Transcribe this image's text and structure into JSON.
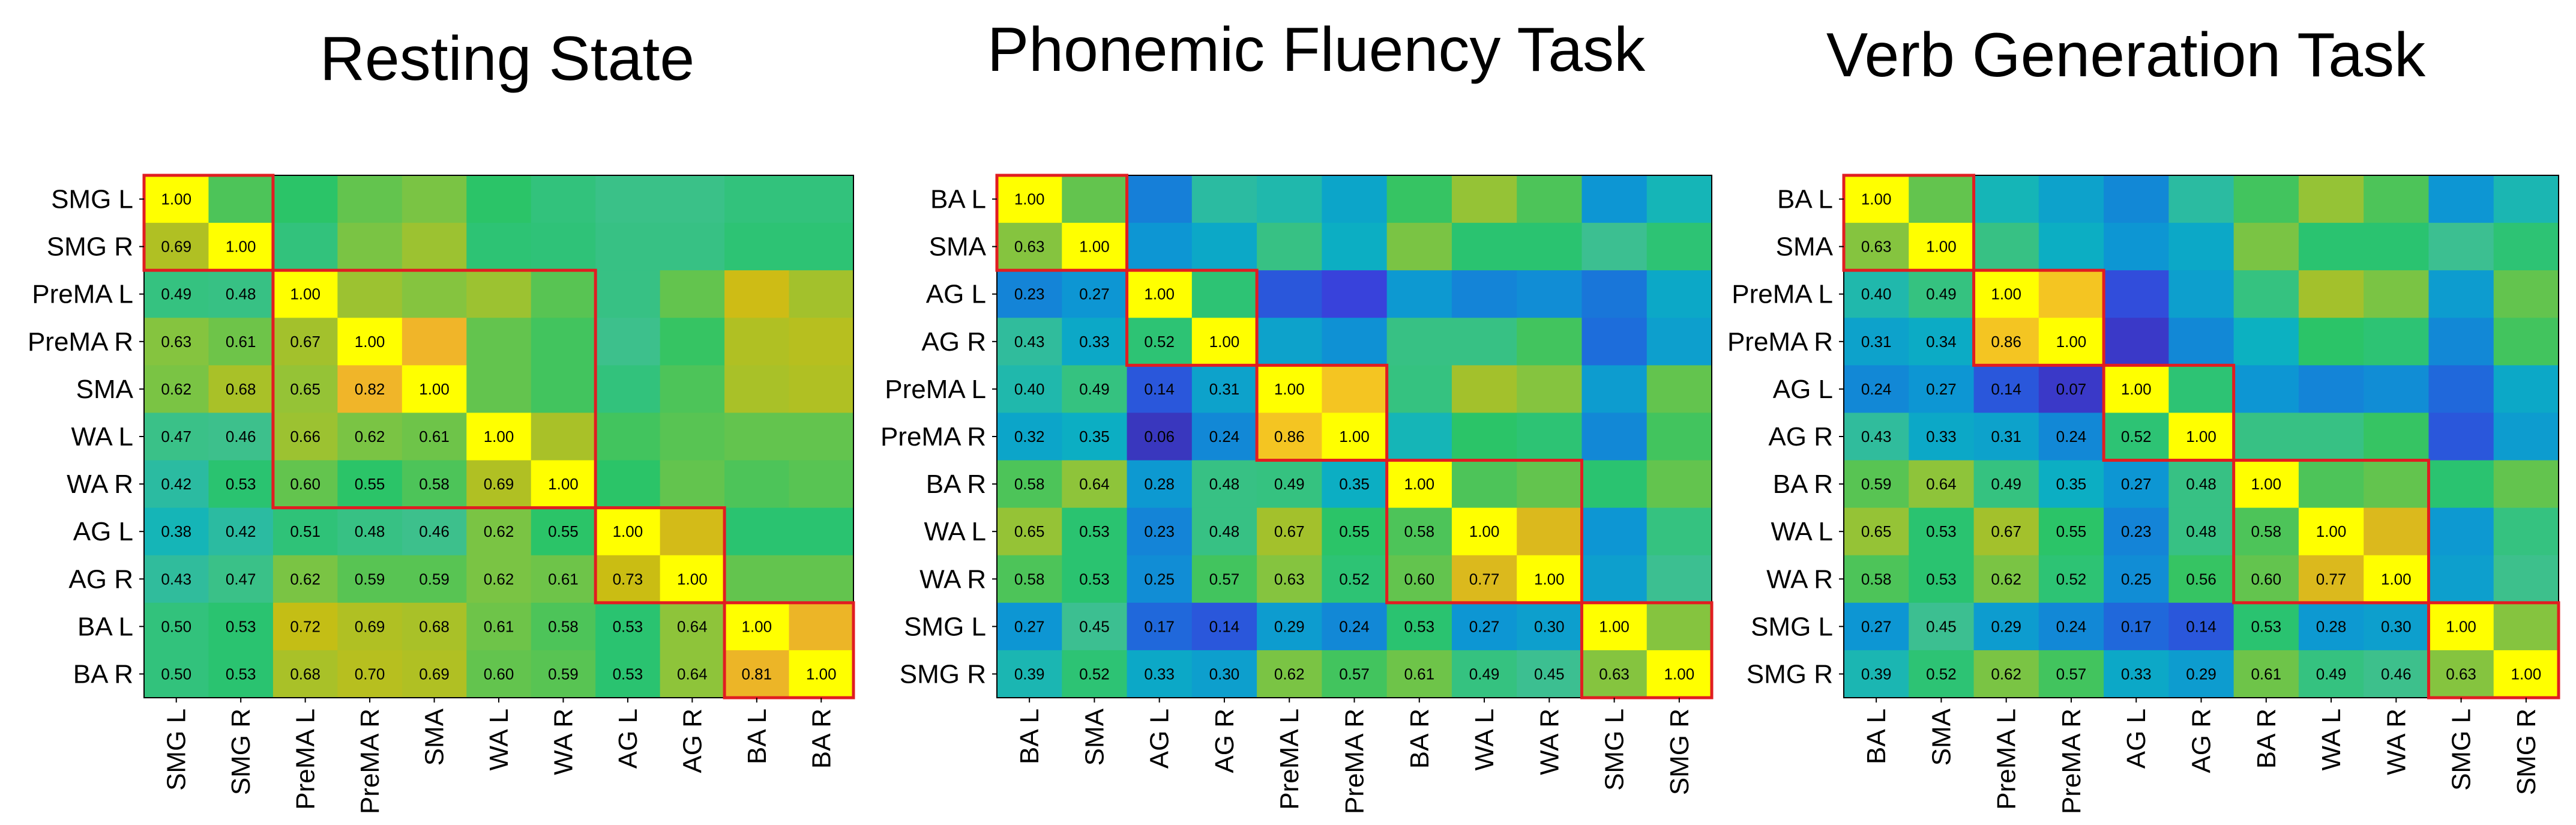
{
  "figure": {
    "panels": [
      {
        "title": "Resting State"
      },
      {
        "title": "Phonemic Fluency Task"
      },
      {
        "title": "Verb Generation Task"
      }
    ]
  },
  "colors": {
    "highlight_box": "#e11d21",
    "background": "#ffffff",
    "colormap": "parula",
    "colormap_stops": [
      "#352a87",
      "#3b3ddb",
      "#1c6edb",
      "#0d97d3",
      "#0cb2c0",
      "#3ec08e",
      "#26c46a",
      "#8cc43c",
      "#c9bd12",
      "#f0b429",
      "#f9d81a",
      "#ffff00"
    ]
  },
  "chart_data": [
    {
      "type": "heatmap",
      "title": "Resting State",
      "row_labels": [
        "SMG L",
        "SMG R",
        "PreMA L",
        "PreMA R",
        "SMA",
        "WA L",
        "WA R",
        "AG L",
        "AG R",
        "BA L",
        "BA R"
      ],
      "col_labels": [
        "SMG L",
        "SMG R",
        "PreMA L",
        "PreMA R",
        "SMA",
        "WA L",
        "WA R",
        "AG L",
        "AG R",
        "BA L",
        "BA R"
      ],
      "values": [
        [
          "1.00",
          null,
          null,
          null,
          null,
          null,
          null,
          null,
          null,
          null,
          null
        ],
        [
          "0.69",
          "1.00",
          null,
          null,
          null,
          null,
          null,
          null,
          null,
          null,
          null
        ],
        [
          "0.49",
          "0.48",
          "1.00",
          null,
          null,
          null,
          null,
          null,
          null,
          null,
          null
        ],
        [
          "0.63",
          "0.61",
          "0.67",
          "1.00",
          null,
          null,
          null,
          null,
          null,
          null,
          null
        ],
        [
          "0.62",
          "0.68",
          "0.65",
          "0.82",
          "1.00",
          null,
          null,
          null,
          null,
          null,
          null
        ],
        [
          "0.47",
          "0.46",
          "0.66",
          "0.62",
          "0.61",
          "1.00",
          null,
          null,
          null,
          null,
          null
        ],
        [
          "0.42",
          "0.53",
          "0.60",
          "0.55",
          "0.58",
          "0.69",
          "1.00",
          null,
          null,
          null,
          null
        ],
        [
          "0.38",
          "0.42",
          "0.51",
          "0.48",
          "0.46",
          "0.62",
          "0.55",
          "1.00",
          null,
          null,
          null
        ],
        [
          "0.43",
          "0.47",
          "0.62",
          "0.59",
          "0.59",
          "0.62",
          "0.61",
          "0.73",
          "1.00",
          null,
          null
        ],
        [
          "0.50",
          "0.53",
          "0.72",
          "0.69",
          "0.68",
          "0.61",
          "0.58",
          "0.53",
          "0.64",
          "1.00",
          null
        ],
        [
          "0.50",
          "0.53",
          "0.68",
          "0.70",
          "0.69",
          "0.60",
          "0.59",
          "0.53",
          "0.64",
          "0.81",
          "1.00"
        ]
      ],
      "upper_triangle": [
        [
          null,
          0.58,
          0.55,
          0.6,
          0.62,
          0.55,
          0.5,
          0.47,
          0.47,
          0.5,
          0.5
        ],
        [
          null,
          null,
          0.5,
          0.62,
          0.66,
          0.52,
          0.51,
          0.48,
          0.48,
          0.52,
          0.52
        ],
        [
          null,
          null,
          null,
          0.66,
          0.63,
          0.66,
          0.59,
          0.48,
          0.6,
          0.74,
          0.67
        ],
        [
          null,
          null,
          null,
          null,
          0.82,
          0.6,
          0.57,
          0.46,
          0.56,
          0.69,
          0.7
        ],
        [
          null,
          null,
          null,
          null,
          null,
          0.6,
          0.57,
          0.5,
          0.58,
          0.68,
          0.69
        ],
        [
          null,
          null,
          null,
          null,
          null,
          null,
          0.68,
          0.57,
          0.59,
          0.6,
          0.6
        ],
        [
          null,
          null,
          null,
          null,
          null,
          null,
          null,
          0.55,
          0.6,
          0.58,
          0.59
        ],
        [
          null,
          null,
          null,
          null,
          null,
          null,
          null,
          null,
          0.75,
          0.53,
          0.53
        ],
        [
          null,
          null,
          null,
          null,
          null,
          null,
          null,
          null,
          null,
          0.6,
          0.6
        ],
        [
          null,
          null,
          null,
          null,
          null,
          null,
          null,
          null,
          null,
          null,
          0.81
        ],
        [
          null,
          null,
          null,
          null,
          null,
          null,
          null,
          null,
          null,
          null,
          null
        ]
      ],
      "blocks": [
        [
          0,
          1
        ],
        [
          2,
          6
        ],
        [
          7,
          8
        ],
        [
          9,
          10
        ]
      ],
      "colormap_range": [
        0,
        1
      ]
    },
    {
      "type": "heatmap",
      "title": "Phonemic Fluency Task",
      "row_labels": [
        "BA L",
        "SMA",
        "AG L",
        "AG R",
        "PreMA L",
        "PreMA R",
        "BA R",
        "WA L",
        "WA R",
        "SMG L",
        "SMG R"
      ],
      "col_labels": [
        "BA L",
        "SMA",
        "AG L",
        "AG R",
        "PreMA L",
        "PreMA R",
        "BA R",
        "WA L",
        "WA R",
        "SMG L",
        "SMG R"
      ],
      "values": [
        [
          "1.00",
          null,
          null,
          null,
          null,
          null,
          null,
          null,
          null,
          null,
          null
        ],
        [
          "0.63",
          "1.00",
          null,
          null,
          null,
          null,
          null,
          null,
          null,
          null,
          null
        ],
        [
          "0.23",
          "0.27",
          "1.00",
          null,
          null,
          null,
          null,
          null,
          null,
          null,
          null
        ],
        [
          "0.43",
          "0.33",
          "0.52",
          "1.00",
          null,
          null,
          null,
          null,
          null,
          null,
          null
        ],
        [
          "0.40",
          "0.49",
          "0.14",
          "0.31",
          "1.00",
          null,
          null,
          null,
          null,
          null,
          null
        ],
        [
          "0.32",
          "0.35",
          "0.06",
          "0.24",
          "0.86",
          "1.00",
          null,
          null,
          null,
          null,
          null
        ],
        [
          "0.58",
          "0.64",
          "0.28",
          "0.48",
          "0.49",
          "0.35",
          "1.00",
          null,
          null,
          null,
          null
        ],
        [
          "0.65",
          "0.53",
          "0.23",
          "0.48",
          "0.67",
          "0.55",
          "0.58",
          "1.00",
          null,
          null,
          null
        ],
        [
          "0.58",
          "0.53",
          "0.25",
          "0.57",
          "0.63",
          "0.52",
          "0.60",
          "0.77",
          "1.00",
          null,
          null
        ],
        [
          "0.27",
          "0.45",
          "0.17",
          "0.14",
          "0.29",
          "0.24",
          "0.53",
          "0.27",
          "0.30",
          "1.00",
          null
        ],
        [
          "0.39",
          "0.52",
          "0.33",
          "0.30",
          "0.62",
          "0.57",
          "0.61",
          "0.49",
          "0.45",
          "0.63",
          "1.00"
        ]
      ],
      "upper_triangle": [
        [
          null,
          0.6,
          0.22,
          0.42,
          0.4,
          0.32,
          0.56,
          0.65,
          0.58,
          0.27,
          0.38
        ],
        [
          null,
          null,
          0.27,
          0.33,
          0.48,
          0.35,
          0.62,
          0.53,
          0.53,
          0.45,
          0.52
        ],
        [
          null,
          null,
          null,
          0.52,
          0.14,
          0.1,
          0.28,
          0.23,
          0.25,
          0.2,
          0.33
        ],
        [
          null,
          null,
          null,
          null,
          0.31,
          0.26,
          0.48,
          0.48,
          0.57,
          0.18,
          0.3
        ],
        [
          null,
          null,
          null,
          null,
          null,
          0.86,
          0.49,
          0.67,
          0.63,
          0.29,
          0.6
        ],
        [
          null,
          null,
          null,
          null,
          null,
          null,
          0.38,
          0.55,
          0.52,
          0.24,
          0.57
        ],
        [
          null,
          null,
          null,
          null,
          null,
          null,
          null,
          0.58,
          0.6,
          0.53,
          0.6
        ],
        [
          null,
          null,
          null,
          null,
          null,
          null,
          null,
          null,
          0.77,
          0.27,
          0.49
        ],
        [
          null,
          null,
          null,
          null,
          null,
          null,
          null,
          null,
          null,
          0.3,
          0.45
        ],
        [
          null,
          null,
          null,
          null,
          null,
          null,
          null,
          null,
          null,
          null,
          0.63
        ],
        [
          null,
          null,
          null,
          null,
          null,
          null,
          null,
          null,
          null,
          null,
          null
        ]
      ],
      "blocks": [
        [
          0,
          1
        ],
        [
          2,
          3
        ],
        [
          4,
          5
        ],
        [
          6,
          8
        ],
        [
          9,
          10
        ]
      ],
      "colormap_range": [
        0,
        1
      ]
    },
    {
      "type": "heatmap",
      "title": "Verb Generation Task",
      "row_labels": [
        "BA L",
        "SMA",
        "PreMA L",
        "PreMA R",
        "AG L",
        "AG R",
        "BA R",
        "WA L",
        "WA R",
        "SMG L",
        "SMG R"
      ],
      "col_labels": [
        "BA L",
        "SMA",
        "PreMA L",
        "PreMA R",
        "AG L",
        "AG R",
        "BA R",
        "WA L",
        "WA R",
        "SMG L",
        "SMG R"
      ],
      "values": [
        [
          "1.00",
          null,
          null,
          null,
          null,
          null,
          null,
          null,
          null,
          null,
          null
        ],
        [
          "0.63",
          "1.00",
          null,
          null,
          null,
          null,
          null,
          null,
          null,
          null,
          null
        ],
        [
          "0.40",
          "0.49",
          "1.00",
          null,
          null,
          null,
          null,
          null,
          null,
          null,
          null
        ],
        [
          "0.31",
          "0.34",
          "0.86",
          "1.00",
          null,
          null,
          null,
          null,
          null,
          null,
          null
        ],
        [
          "0.24",
          "0.27",
          "0.14",
          "0.07",
          "1.00",
          null,
          null,
          null,
          null,
          null,
          null
        ],
        [
          "0.43",
          "0.33",
          "0.31",
          "0.24",
          "0.52",
          "1.00",
          null,
          null,
          null,
          null,
          null
        ],
        [
          "0.59",
          "0.64",
          "0.49",
          "0.35",
          "0.27",
          "0.48",
          "1.00",
          null,
          null,
          null,
          null
        ],
        [
          "0.65",
          "0.53",
          "0.67",
          "0.55",
          "0.23",
          "0.48",
          "0.58",
          "1.00",
          null,
          null,
          null
        ],
        [
          "0.58",
          "0.53",
          "0.62",
          "0.52",
          "0.25",
          "0.56",
          "0.60",
          "0.77",
          "1.00",
          null,
          null
        ],
        [
          "0.27",
          "0.45",
          "0.29",
          "0.24",
          "0.17",
          "0.14",
          "0.53",
          "0.28",
          "0.30",
          "1.00",
          null
        ],
        [
          "0.39",
          "0.52",
          "0.62",
          "0.57",
          "0.33",
          "0.29",
          "0.61",
          "0.49",
          "0.46",
          "0.63",
          "1.00"
        ]
      ],
      "upper_triangle": [
        [
          null,
          0.6,
          0.38,
          0.31,
          0.24,
          0.42,
          0.57,
          0.65,
          0.58,
          0.27,
          0.39
        ],
        [
          null,
          null,
          0.48,
          0.35,
          0.27,
          0.33,
          0.62,
          0.53,
          0.53,
          0.45,
          0.52
        ],
        [
          null,
          null,
          null,
          0.86,
          0.12,
          0.3,
          0.49,
          0.67,
          0.62,
          0.29,
          0.6
        ],
        [
          null,
          null,
          null,
          null,
          0.07,
          0.24,
          0.36,
          0.55,
          0.52,
          0.24,
          0.57
        ],
        [
          null,
          null,
          null,
          null,
          null,
          0.52,
          0.27,
          0.23,
          0.25,
          0.17,
          0.33
        ],
        [
          null,
          null,
          null,
          null,
          null,
          null,
          0.48,
          0.48,
          0.56,
          0.14,
          0.29
        ],
        [
          null,
          null,
          null,
          null,
          null,
          null,
          null,
          0.58,
          0.6,
          0.53,
          0.6
        ],
        [
          null,
          null,
          null,
          null,
          null,
          null,
          null,
          null,
          0.77,
          0.28,
          0.49
        ],
        [
          null,
          null,
          null,
          null,
          null,
          null,
          null,
          null,
          null,
          0.3,
          0.46
        ],
        [
          null,
          null,
          null,
          null,
          null,
          null,
          null,
          null,
          null,
          null,
          0.63
        ],
        [
          null,
          null,
          null,
          null,
          null,
          null,
          null,
          null,
          null,
          null,
          null
        ]
      ],
      "blocks": [
        [
          0,
          1
        ],
        [
          2,
          3
        ],
        [
          4,
          5
        ],
        [
          6,
          8
        ],
        [
          9,
          10
        ]
      ],
      "colormap_range": [
        0,
        1
      ]
    }
  ]
}
